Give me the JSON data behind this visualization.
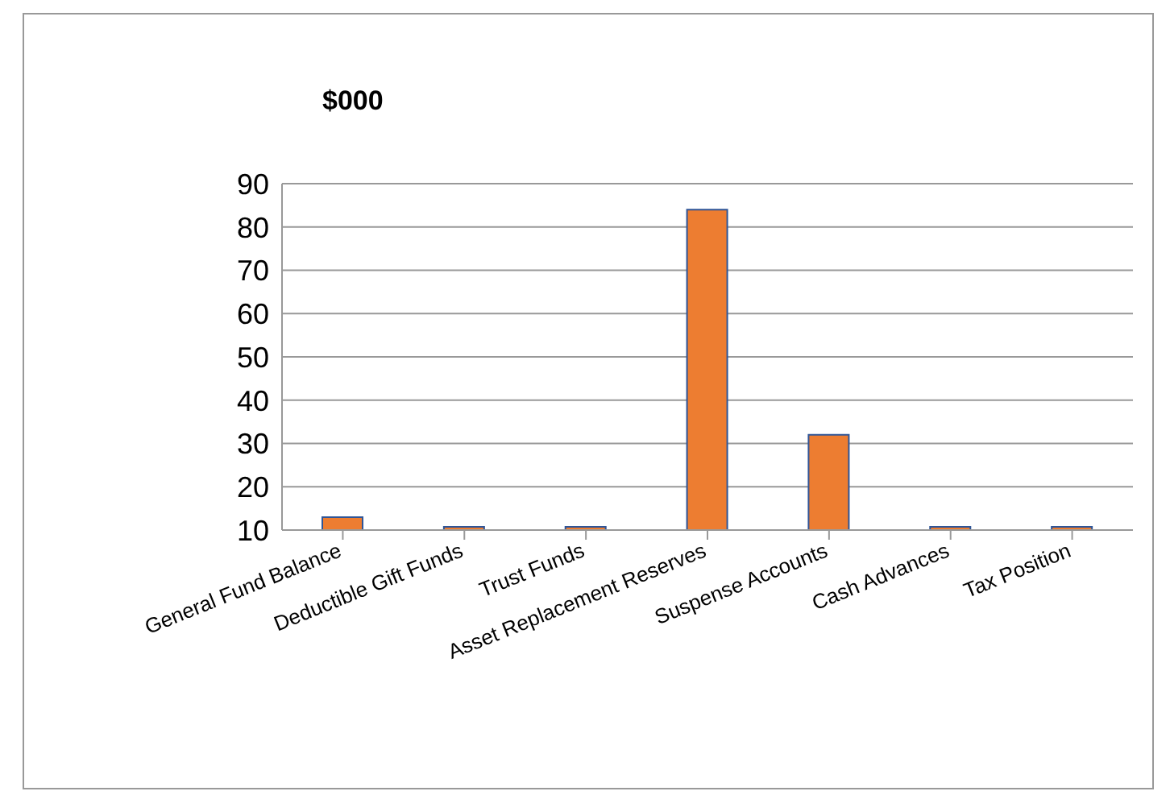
{
  "chart_data": {
    "type": "bar",
    "title": "$000",
    "categories": [
      "General Fund Balance",
      "Deductible Gift Funds",
      "Trust Funds",
      "Asset Replacement Reserves",
      "Suspense Accounts",
      "Cash Advances",
      "Tax Position"
    ],
    "values": [
      13,
      10,
      10,
      84,
      32,
      10,
      10
    ],
    "color": "#ed7d31",
    "ylim": [
      10,
      90
    ],
    "yticks": [
      10,
      20,
      30,
      40,
      50,
      60,
      70,
      80,
      90
    ],
    "grid": "y"
  }
}
